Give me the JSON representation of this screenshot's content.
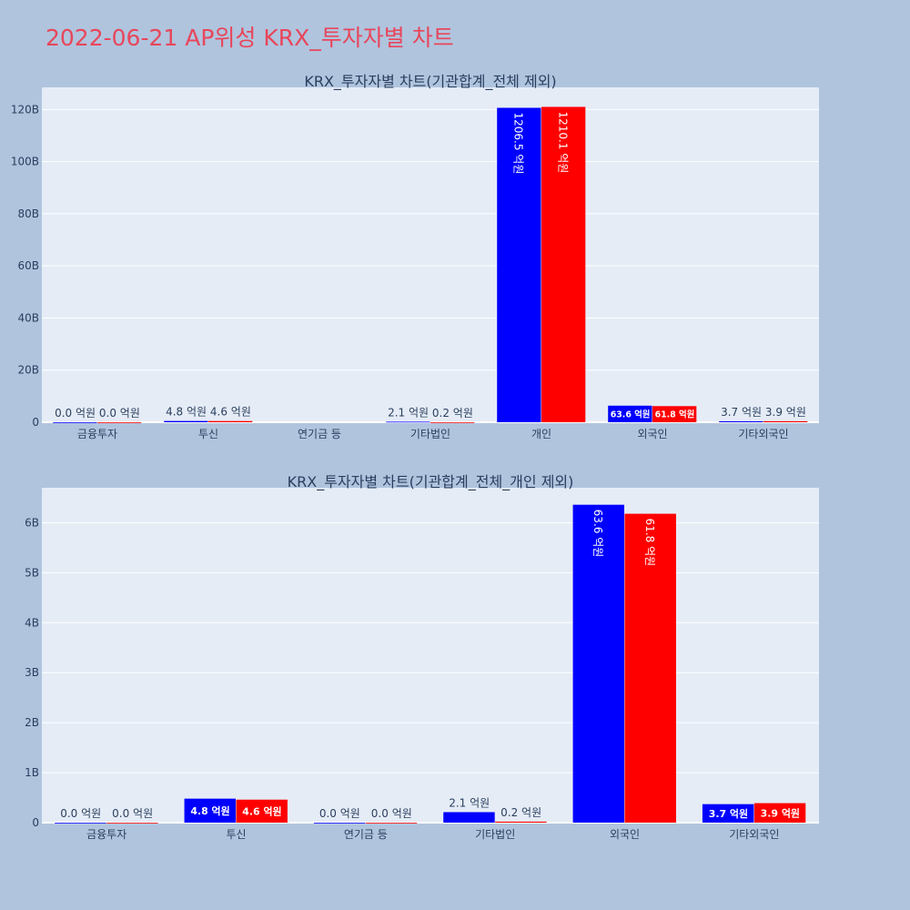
{
  "page": {
    "title": "2022-06-21 AP위성 KRX_투자자별 차트"
  },
  "colors": {
    "series_a": "#0000ff",
    "series_b": "#ff0000"
  },
  "chart_data": [
    {
      "type": "bar",
      "title": "KRX_투자자별 차트(기관합계_전체 제외)",
      "categories": [
        "금융투자",
        "투신",
        "연기금 등",
        "기타법인",
        "개인",
        "외국인",
        "기타외국인"
      ],
      "y_tick_values": [
        0,
        20,
        40,
        60,
        80,
        100,
        120
      ],
      "y_tick_labels": [
        "0",
        "20B",
        "40B",
        "60B",
        "80B",
        "100B",
        "120B"
      ],
      "ylim": [
        0,
        128.5
      ],
      "unit": "B",
      "grid": true,
      "legend": "none",
      "series": [
        {
          "color": "#0000ff",
          "values": [
            0.0,
            0.48,
            null,
            0.21,
            120.65,
            6.36,
            0.37
          ],
          "labels": [
            "0.0 억원",
            "4.8 억원",
            "",
            "2.1 억원",
            "1206.5 억원",
            "63.6 억원",
            "3.7 억원"
          ]
        },
        {
          "color": "#ff0000",
          "values": [
            0.0,
            0.46,
            null,
            0.02,
            121.01,
            6.18,
            0.39
          ],
          "labels": [
            "0.0 억원",
            "4.6 억원",
            "",
            "0.2 억원",
            "1210.1 억원",
            "61.8 억원",
            "3.9 억원"
          ]
        }
      ]
    },
    {
      "type": "bar",
      "title": "KRX_투자자별 차트(기관합계_전체_개인 제외)",
      "categories": [
        "금융투자",
        "투신",
        "연기금 등",
        "기타법인",
        "외국인",
        "기타외국인"
      ],
      "y_tick_values": [
        0,
        1,
        2,
        3,
        4,
        5,
        6
      ],
      "y_tick_labels": [
        "0",
        "1B",
        "2B",
        "3B",
        "4B",
        "5B",
        "6B"
      ],
      "ylim": [
        0,
        6.7
      ],
      "unit": "B",
      "grid": true,
      "legend": "none",
      "series": [
        {
          "color": "#0000ff",
          "values": [
            0.0,
            0.48,
            0.0,
            0.21,
            6.36,
            0.37
          ],
          "labels": [
            "0.0 억원",
            "4.8 억원",
            "0.0 억원",
            "2.1 억원",
            "63.6 억원",
            "3.7 억원"
          ]
        },
        {
          "color": "#ff0000",
          "values": [
            0.0,
            0.46,
            0.0,
            0.02,
            6.18,
            0.39
          ],
          "labels": [
            "0.0 억원",
            "4.6 억원",
            "0.0 억원",
            "0.2 억원",
            "61.8 억원",
            "3.9 억원"
          ]
        }
      ]
    }
  ]
}
